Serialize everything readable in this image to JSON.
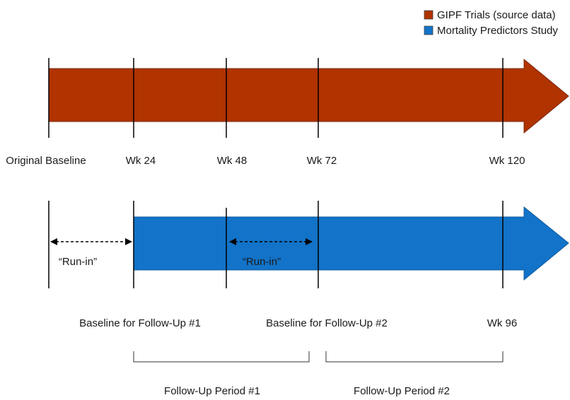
{
  "legend": [
    {
      "label": "GIPF Trials (source data)",
      "color": "#b03300"
    },
    {
      "label": "Mortality Predictors Study",
      "color": "#1273c8"
    }
  ],
  "timepoints": {
    "original_baseline": "Original Baseline",
    "wk24": "Wk 24",
    "wk48": "Wk 48",
    "wk72": "Wk 72",
    "wk120": "Wk 120"
  },
  "run_in_label": "“Run-in”",
  "lower_labels": {
    "baseline_fu1": "Baseline for Follow-Up #1",
    "baseline_fu2": "Baseline for Follow-Up #2",
    "wk96": "Wk 96"
  },
  "periods": {
    "period1": "Follow-Up Period #1",
    "period2": "Follow-Up Period #2"
  }
}
